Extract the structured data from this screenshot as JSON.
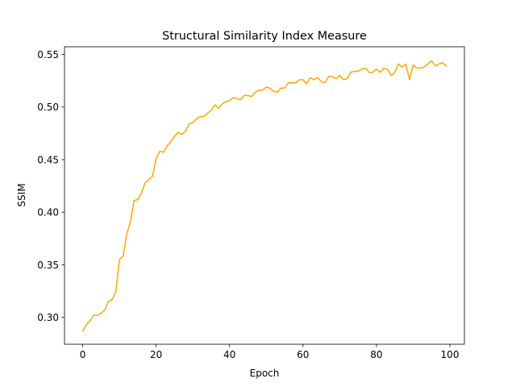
{
  "chart_data": {
    "type": "line",
    "title": "Structural Similarity Index Measure",
    "xlabel": "Epoch",
    "ylabel": "SSIM",
    "xlim": [
      -4.95,
      103.95
    ],
    "ylim": [
      0.2745,
      0.5573
    ],
    "xticks": [
      0,
      20,
      40,
      60,
      80,
      100
    ],
    "xtick_labels": [
      "0",
      "20",
      "40",
      "60",
      "80",
      "100"
    ],
    "yticks": [
      0.3,
      0.35,
      0.4,
      0.45,
      0.5,
      0.55
    ],
    "ytick_labels": [
      "0.30",
      "0.35",
      "0.40",
      "0.45",
      "0.50",
      "0.55"
    ],
    "grid": false,
    "legend": "none",
    "series": [
      {
        "color": "#ffa500",
        "x": [
          0,
          1,
          2,
          3,
          4,
          5,
          6,
          7,
          8,
          9,
          10,
          11,
          12,
          13,
          14,
          15,
          16,
          17,
          18,
          19,
          20,
          21,
          22,
          23,
          24,
          25,
          26,
          27,
          28,
          29,
          30,
          31,
          32,
          33,
          34,
          35,
          36,
          37,
          38,
          39,
          40,
          41,
          42,
          43,
          44,
          45,
          46,
          47,
          48,
          49,
          50,
          51,
          52,
          53,
          54,
          55,
          56,
          57,
          58,
          59,
          60,
          61,
          62,
          63,
          64,
          65,
          66,
          67,
          68,
          69,
          70,
          71,
          72,
          73,
          74,
          75,
          76,
          77,
          78,
          79,
          80,
          81,
          82,
          83,
          84,
          85,
          86,
          87,
          88,
          89,
          90,
          91,
          92,
          93,
          94,
          95,
          96,
          97,
          98,
          99
        ],
        "y": [
          0.287,
          0.293,
          0.297,
          0.302,
          0.302,
          0.304,
          0.307,
          0.315,
          0.317,
          0.324,
          0.355,
          0.358,
          0.379,
          0.391,
          0.411,
          0.412,
          0.418,
          0.428,
          0.431,
          0.434,
          0.451,
          0.458,
          0.457,
          0.463,
          0.467,
          0.472,
          0.476,
          0.474,
          0.477,
          0.484,
          0.485,
          0.489,
          0.491,
          0.491,
          0.494,
          0.497,
          0.502,
          0.499,
          0.503,
          0.505,
          0.506,
          0.509,
          0.508,
          0.507,
          0.511,
          0.511,
          0.51,
          0.514,
          0.516,
          0.516,
          0.519,
          0.518,
          0.515,
          0.514,
          0.518,
          0.518,
          0.523,
          0.523,
          0.523,
          0.526,
          0.526,
          0.522,
          0.528,
          0.526,
          0.528,
          0.524,
          0.523,
          0.529,
          0.529,
          0.527,
          0.53,
          0.526,
          0.527,
          0.533,
          0.534,
          0.534,
          0.536,
          0.537,
          0.533,
          0.533,
          0.536,
          0.533,
          0.537,
          0.536,
          0.53,
          0.533,
          0.541,
          0.538,
          0.541,
          0.526,
          0.54,
          0.537,
          0.537,
          0.538,
          0.541,
          0.544,
          0.539,
          0.541,
          0.542,
          0.539
        ]
      }
    ]
  }
}
